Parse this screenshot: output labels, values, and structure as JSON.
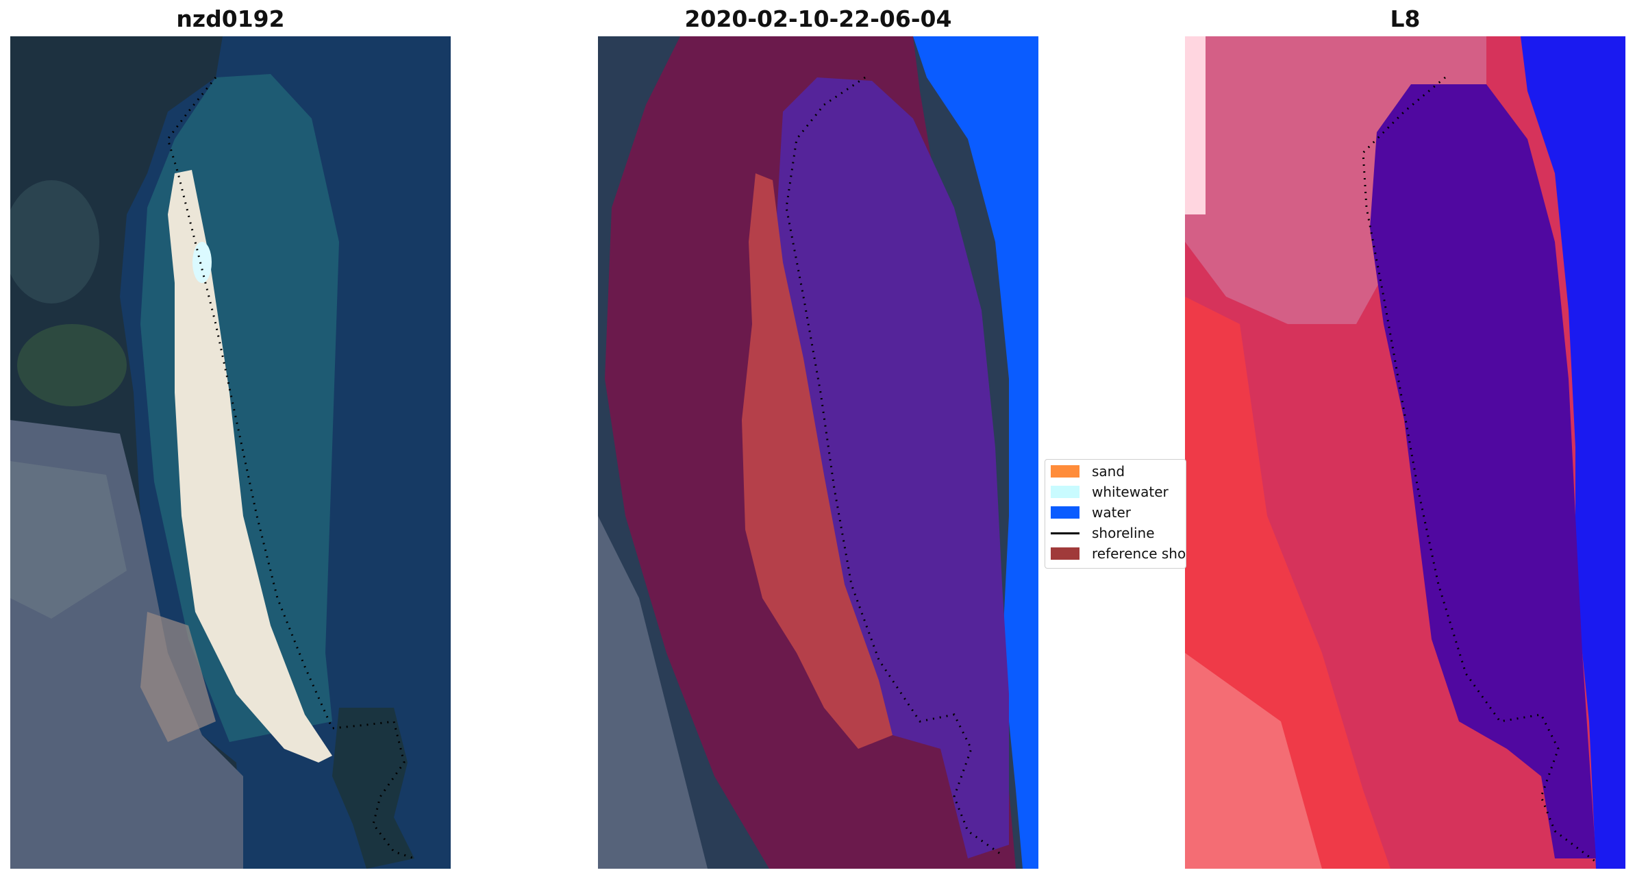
{
  "panels": [
    {
      "title": "nzd0192"
    },
    {
      "title": "2020-02-10-22-06-04"
    },
    {
      "title": "L8"
    }
  ],
  "legend": {
    "items": [
      {
        "label": "sand",
        "color": "#ff8c3a"
      },
      {
        "label": "whitewater",
        "color": "#c9fbff"
      },
      {
        "label": "water",
        "color": "#0a5cff"
      },
      {
        "label": "shoreline",
        "color": "#000000"
      },
      {
        "label": "reference shoreline",
        "color": "#a03a3a"
      }
    ]
  },
  "colors": {
    "deep_ocean": "#153a66",
    "lagoon": "#1f5f73",
    "beach_sand": "#ece6d8",
    "land_dark": "#1d3340",
    "urban": "#4f5b70",
    "buffer_overlay": "#6d1a4a",
    "classified_sand": "#b5404a",
    "classified_water": "#55249a",
    "open_water": "#0a5cff",
    "l8_land": "#d6335b",
    "l8_water_body": "#5008a0",
    "l8_open_water": "#1a1af0"
  }
}
